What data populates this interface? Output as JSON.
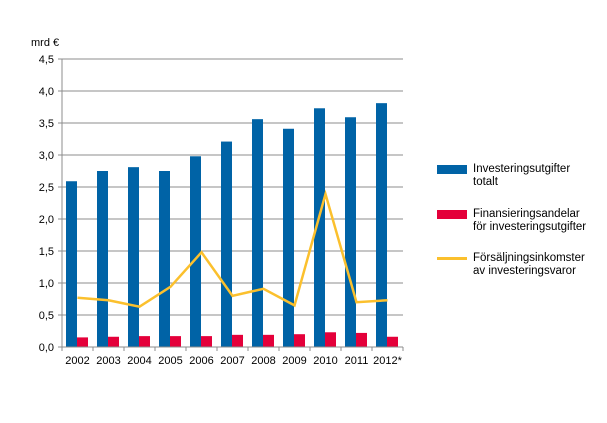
{
  "chart_data": {
    "type": "bar",
    "ylabel": "mrd €",
    "ylim": [
      0,
      4.5
    ],
    "yticks": [
      "0,0",
      "0,5",
      "1,0",
      "1,5",
      "2,0",
      "2,5",
      "3,0",
      "3,5",
      "4,0",
      "4,5"
    ],
    "grid": true,
    "legend_position": "right",
    "categories": [
      "2002",
      "2003",
      "2004",
      "2005",
      "2006",
      "2007",
      "2008",
      "2009",
      "2010",
      "2011",
      "2012*"
    ],
    "series": [
      {
        "name": "Investeringsutgifter\ntotalt",
        "type": "bar",
        "color": "#0063a6",
        "values": [
          2.59,
          2.75,
          2.81,
          2.75,
          2.98,
          3.21,
          3.56,
          3.41,
          3.73,
          3.59,
          3.81
        ]
      },
      {
        "name": "Finansieringsandelar\nför investeringsutgifter",
        "type": "bar",
        "color": "#e4003a",
        "values": [
          0.15,
          0.16,
          0.17,
          0.17,
          0.17,
          0.19,
          0.19,
          0.2,
          0.23,
          0.22,
          0.16
        ]
      },
      {
        "name": "Försäljningsinkomster\nav investeringsvaror",
        "type": "line",
        "color": "#fbc02d",
        "values": [
          0.77,
          0.73,
          0.63,
          0.94,
          1.48,
          0.8,
          0.91,
          0.65,
          2.39,
          0.7,
          0.73
        ]
      }
    ]
  }
}
